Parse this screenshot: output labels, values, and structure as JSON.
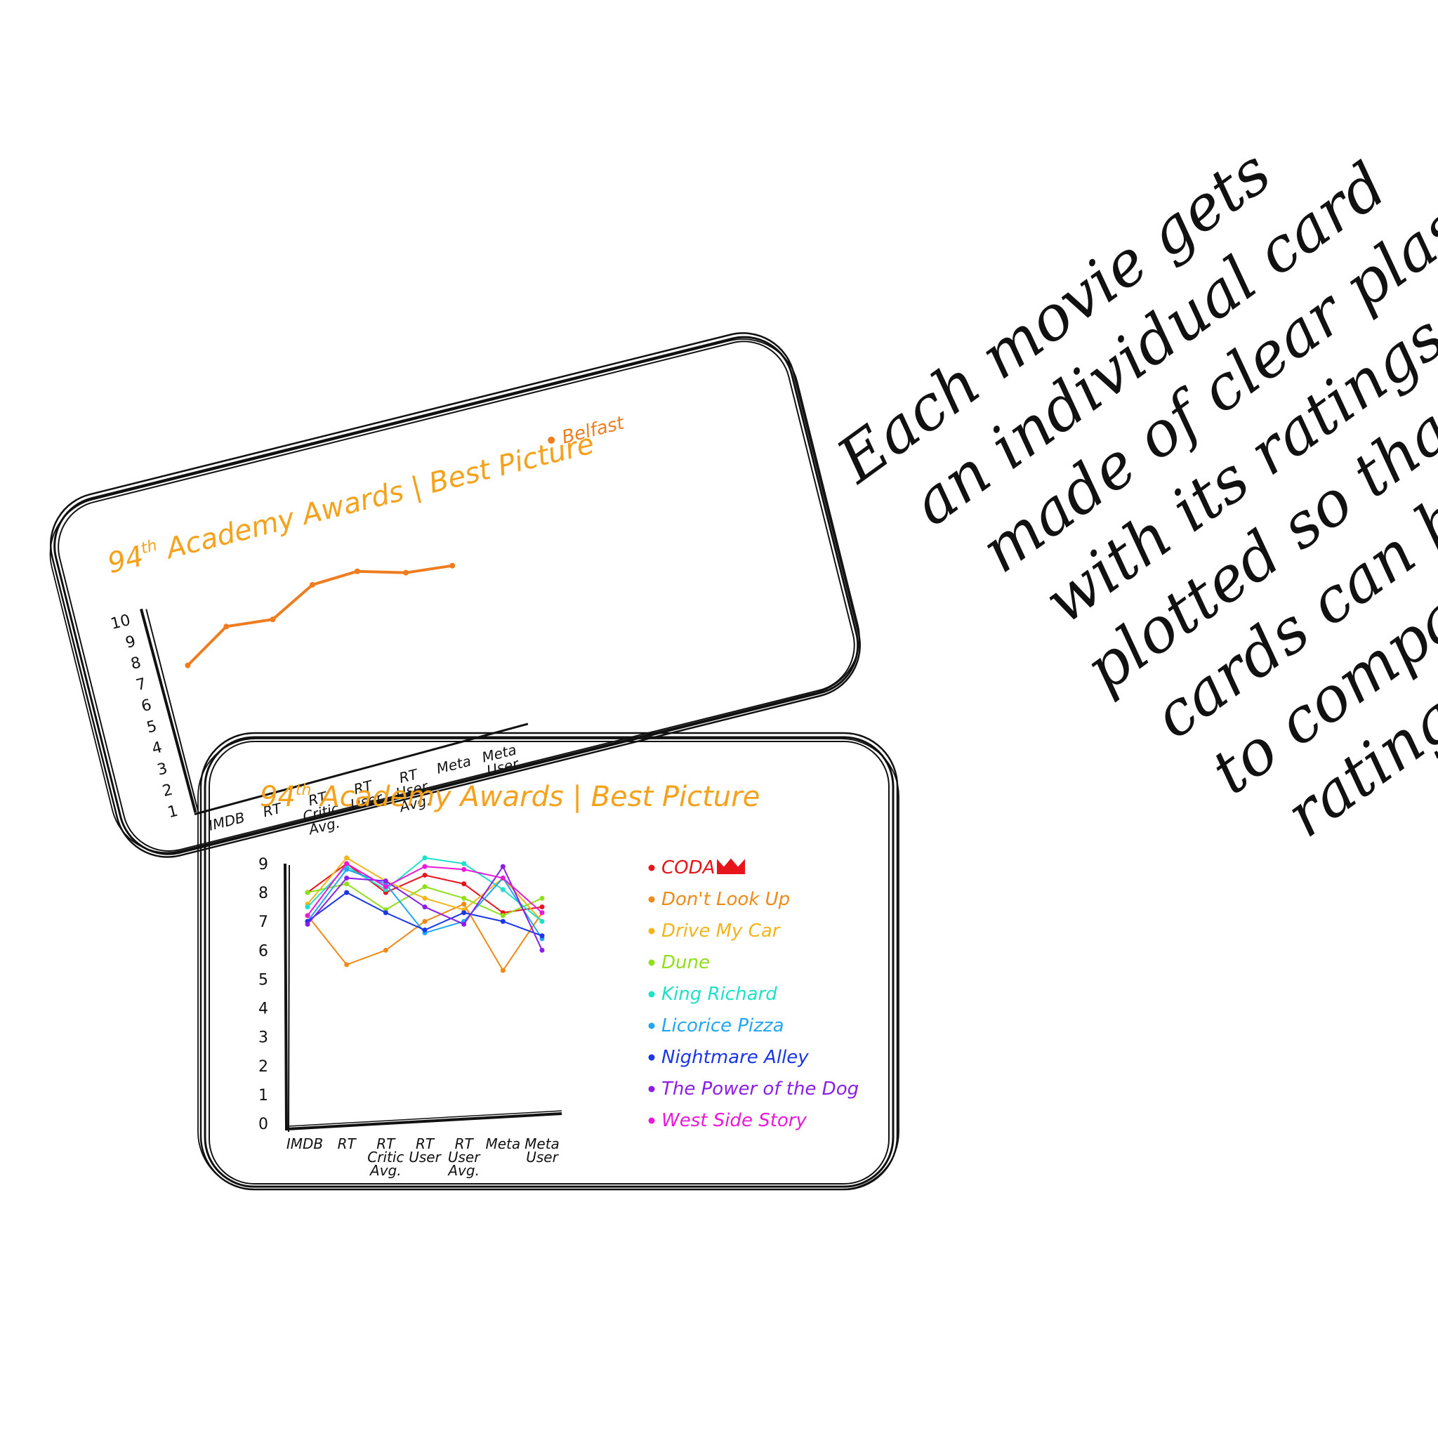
{
  "colors": {
    "title": "#f4a21c",
    "stroke": "#111111",
    "belfast": "#ef7d1f"
  },
  "cards": {
    "back": {
      "title_main": "94",
      "title_sup": "th",
      "title_rest": " Academy Awards | Best Picture",
      "y_ticks": [
        "10",
        "9",
        "8",
        "7",
        "6",
        "5",
        "4",
        "3",
        "2",
        "1"
      ],
      "x_labels": [
        [
          "IMDB"
        ],
        [
          "RT"
        ],
        [
          "RT",
          "Critic",
          "Avg."
        ],
        [
          "RT",
          "User"
        ],
        [
          "RT",
          "User",
          "Avg."
        ],
        [
          "Meta"
        ],
        [
          "Meta",
          "User"
        ]
      ],
      "legend": [
        "Belfast"
      ]
    },
    "front": {
      "title_main": "94",
      "title_sup": "th",
      "title_rest": " Academy Awards | Best Picture",
      "y_ticks": [
        "0",
        "1",
        "2",
        "3",
        "4",
        "5",
        "6",
        "7",
        "8",
        "9"
      ],
      "x_labels": [
        [
          "IMDB"
        ],
        [
          "RT"
        ],
        [
          "RT",
          "Critic",
          "Avg."
        ],
        [
          "RT",
          "User"
        ],
        [
          "RT",
          "User",
          "Avg."
        ],
        [
          "Meta"
        ],
        [
          "Meta",
          "User"
        ]
      ],
      "legend": [
        "CODA",
        "Don't Look Up",
        "Drive My Car",
        "Dune",
        "King Richard",
        "Licorice Pizza",
        "Nightmare Alley",
        "The Power of the Dog",
        "West Side Story"
      ]
    }
  },
  "note": {
    "lines": [
      "Each movie gets",
      "an individual card",
      "made of clear plastic",
      "with its ratings",
      "plotted so that the",
      "cards can be stacked",
      "to compare the",
      "rating plots."
    ]
  },
  "chart_data": [
    {
      "type": "line",
      "title": "94th Academy Awards | Best Picture",
      "categories": [
        "IMDB",
        "RT",
        "RT Critic Avg.",
        "RT User",
        "RT User Avg.",
        "Meta",
        "Meta User"
      ],
      "ylim": [
        1,
        10
      ],
      "series": [
        {
          "name": "Belfast",
          "color": "#ef7d1f",
          "values": [
            7.3,
            8.6,
            8.4,
            9.5,
            9.6,
            9.0,
            8.8
          ]
        }
      ]
    },
    {
      "type": "line",
      "title": "94th Academy Awards | Best Picture",
      "categories": [
        "IMDB",
        "RT",
        "RT Critic Avg.",
        "RT User",
        "RT User Avg.",
        "Meta",
        "Meta User"
      ],
      "ylim": [
        0,
        9
      ],
      "series": [
        {
          "name": "CODA",
          "color": "#e8141c",
          "values": [
            8.0,
            9.0,
            8.0,
            8.6,
            8.3,
            7.3,
            7.5
          ]
        },
        {
          "name": "Don't Look Up",
          "color": "#f08a16",
          "values": [
            7.2,
            5.5,
            6.0,
            7.0,
            7.6,
            5.3,
            7.3
          ]
        },
        {
          "name": "Drive My Car",
          "color": "#f2b51a",
          "values": [
            7.6,
            9.2,
            8.4,
            7.8,
            7.4,
            8.5,
            7.0
          ]
        },
        {
          "name": "Dune",
          "color": "#8fe01a",
          "values": [
            8.0,
            8.3,
            7.4,
            8.2,
            7.8,
            7.2,
            7.8
          ]
        },
        {
          "name": "King Richard",
          "color": "#1fe0c8",
          "values": [
            7.5,
            8.9,
            8.1,
            9.2,
            9.0,
            8.1,
            7.0
          ]
        },
        {
          "name": "Licorice Pizza",
          "color": "#23a6f0",
          "values": [
            7.0,
            8.8,
            8.3,
            6.6,
            7.0,
            8.5,
            6.4
          ]
        },
        {
          "name": "Nightmare Alley",
          "color": "#1a36e8",
          "values": [
            7.0,
            8.0,
            7.3,
            6.7,
            7.3,
            7.0,
            6.5
          ]
        },
        {
          "name": "The Power of the Dog",
          "color": "#8a1ee8",
          "values": [
            6.9,
            8.5,
            8.4,
            7.5,
            6.9,
            8.9,
            6.0
          ]
        },
        {
          "name": "West Side Story",
          "color": "#e81ad8",
          "values": [
            7.2,
            9.0,
            8.2,
            8.9,
            8.8,
            8.5,
            7.3
          ]
        }
      ]
    }
  ]
}
